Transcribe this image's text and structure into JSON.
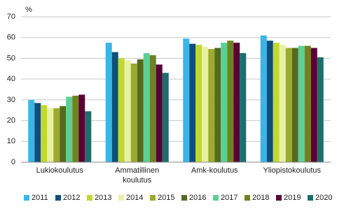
{
  "chart_data": {
    "type": "bar",
    "y_label": "%",
    "categories": [
      "Lukiokoulutus",
      "Ammatillinen\nkoulutus",
      "Amk-koulutus",
      "Yliopistokoulutus"
    ],
    "series": [
      {
        "name": "2011",
        "color": "#3bb5e8",
        "values": [
          30,
          57.5,
          59.5,
          61
        ]
      },
      {
        "name": "2012",
        "color": "#0d4f7b",
        "values": [
          28.5,
          53,
          57,
          58.5
        ]
      },
      {
        "name": "2013",
        "color": "#c3d82e",
        "values": [
          27.5,
          50,
          56.5,
          57.5
        ]
      },
      {
        "name": "2014",
        "color": "#e9f0a6",
        "values": [
          26,
          49,
          55.5,
          56.5
        ]
      },
      {
        "name": "2015",
        "color": "#9aab2e",
        "values": [
          26,
          47.5,
          54.5,
          55
        ]
      },
      {
        "name": "2016",
        "color": "#56691f",
        "values": [
          27,
          49.5,
          55,
          55
        ]
      },
      {
        "name": "2017",
        "color": "#5ccf96",
        "values": [
          31.5,
          52.5,
          57.5,
          56
        ]
      },
      {
        "name": "2018",
        "color": "#708220",
        "values": [
          32,
          51.5,
          58.5,
          56
        ]
      },
      {
        "name": "2019",
        "color": "#5a0035",
        "values": [
          32.5,
          47,
          57.5,
          55
        ]
      },
      {
        "name": "2020",
        "color": "#1d6e6e",
        "values": [
          24.5,
          43,
          52.5,
          50.5
        ]
      }
    ],
    "ylim": [
      0,
      70
    ],
    "yticks": [
      0,
      10,
      20,
      30,
      40,
      50,
      60,
      70
    ],
    "grid": true
  }
}
